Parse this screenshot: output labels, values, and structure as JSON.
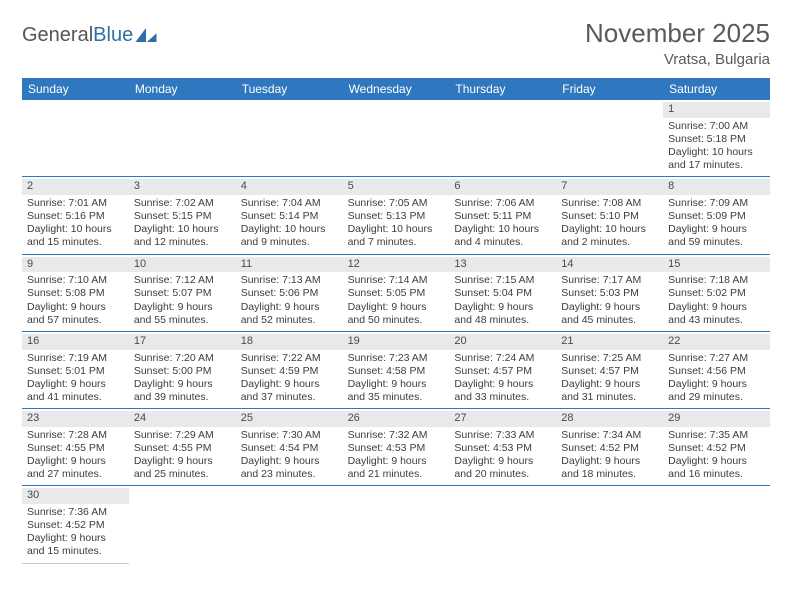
{
  "brand": {
    "part1": "General",
    "part2": "Blue"
  },
  "title": {
    "month": "November 2025",
    "location": "Vratsa, Bulgaria"
  },
  "header_bg": "#2f78bf",
  "text_color": "#3d3d3d",
  "daybar_bg": "#e8e9ea",
  "rule_color": "#2f78bf",
  "weekdays": [
    "Sunday",
    "Monday",
    "Tuesday",
    "Wednesday",
    "Thursday",
    "Friday",
    "Saturday"
  ],
  "weeks": [
    [
      null,
      null,
      null,
      null,
      null,
      null,
      {
        "n": "1",
        "sr": "7:00 AM",
        "ss": "5:18 PM",
        "dl": "10 hours and 17 minutes."
      }
    ],
    [
      {
        "n": "2",
        "sr": "7:01 AM",
        "ss": "5:16 PM",
        "dl": "10 hours and 15 minutes."
      },
      {
        "n": "3",
        "sr": "7:02 AM",
        "ss": "5:15 PM",
        "dl": "10 hours and 12 minutes."
      },
      {
        "n": "4",
        "sr": "7:04 AM",
        "ss": "5:14 PM",
        "dl": "10 hours and 9 minutes."
      },
      {
        "n": "5",
        "sr": "7:05 AM",
        "ss": "5:13 PM",
        "dl": "10 hours and 7 minutes."
      },
      {
        "n": "6",
        "sr": "7:06 AM",
        "ss": "5:11 PM",
        "dl": "10 hours and 4 minutes."
      },
      {
        "n": "7",
        "sr": "7:08 AM",
        "ss": "5:10 PM",
        "dl": "10 hours and 2 minutes."
      },
      {
        "n": "8",
        "sr": "7:09 AM",
        "ss": "5:09 PM",
        "dl": "9 hours and 59 minutes."
      }
    ],
    [
      {
        "n": "9",
        "sr": "7:10 AM",
        "ss": "5:08 PM",
        "dl": "9 hours and 57 minutes."
      },
      {
        "n": "10",
        "sr": "7:12 AM",
        "ss": "5:07 PM",
        "dl": "9 hours and 55 minutes."
      },
      {
        "n": "11",
        "sr": "7:13 AM",
        "ss": "5:06 PM",
        "dl": "9 hours and 52 minutes."
      },
      {
        "n": "12",
        "sr": "7:14 AM",
        "ss": "5:05 PM",
        "dl": "9 hours and 50 minutes."
      },
      {
        "n": "13",
        "sr": "7:15 AM",
        "ss": "5:04 PM",
        "dl": "9 hours and 48 minutes."
      },
      {
        "n": "14",
        "sr": "7:17 AM",
        "ss": "5:03 PM",
        "dl": "9 hours and 45 minutes."
      },
      {
        "n": "15",
        "sr": "7:18 AM",
        "ss": "5:02 PM",
        "dl": "9 hours and 43 minutes."
      }
    ],
    [
      {
        "n": "16",
        "sr": "7:19 AM",
        "ss": "5:01 PM",
        "dl": "9 hours and 41 minutes."
      },
      {
        "n": "17",
        "sr": "7:20 AM",
        "ss": "5:00 PM",
        "dl": "9 hours and 39 minutes."
      },
      {
        "n": "18",
        "sr": "7:22 AM",
        "ss": "4:59 PM",
        "dl": "9 hours and 37 minutes."
      },
      {
        "n": "19",
        "sr": "7:23 AM",
        "ss": "4:58 PM",
        "dl": "9 hours and 35 minutes."
      },
      {
        "n": "20",
        "sr": "7:24 AM",
        "ss": "4:57 PM",
        "dl": "9 hours and 33 minutes."
      },
      {
        "n": "21",
        "sr": "7:25 AM",
        "ss": "4:57 PM",
        "dl": "9 hours and 31 minutes."
      },
      {
        "n": "22",
        "sr": "7:27 AM",
        "ss": "4:56 PM",
        "dl": "9 hours and 29 minutes."
      }
    ],
    [
      {
        "n": "23",
        "sr": "7:28 AM",
        "ss": "4:55 PM",
        "dl": "9 hours and 27 minutes."
      },
      {
        "n": "24",
        "sr": "7:29 AM",
        "ss": "4:55 PM",
        "dl": "9 hours and 25 minutes."
      },
      {
        "n": "25",
        "sr": "7:30 AM",
        "ss": "4:54 PM",
        "dl": "9 hours and 23 minutes."
      },
      {
        "n": "26",
        "sr": "7:32 AM",
        "ss": "4:53 PM",
        "dl": "9 hours and 21 minutes."
      },
      {
        "n": "27",
        "sr": "7:33 AM",
        "ss": "4:53 PM",
        "dl": "9 hours and 20 minutes."
      },
      {
        "n": "28",
        "sr": "7:34 AM",
        "ss": "4:52 PM",
        "dl": "9 hours and 18 minutes."
      },
      {
        "n": "29",
        "sr": "7:35 AM",
        "ss": "4:52 PM",
        "dl": "9 hours and 16 minutes."
      }
    ],
    [
      {
        "n": "30",
        "sr": "7:36 AM",
        "ss": "4:52 PM",
        "dl": "9 hours and 15 minutes."
      },
      null,
      null,
      null,
      null,
      null,
      null
    ]
  ],
  "labels": {
    "sunrise": "Sunrise: ",
    "sunset": "Sunset: ",
    "daylight": "Daylight: "
  }
}
